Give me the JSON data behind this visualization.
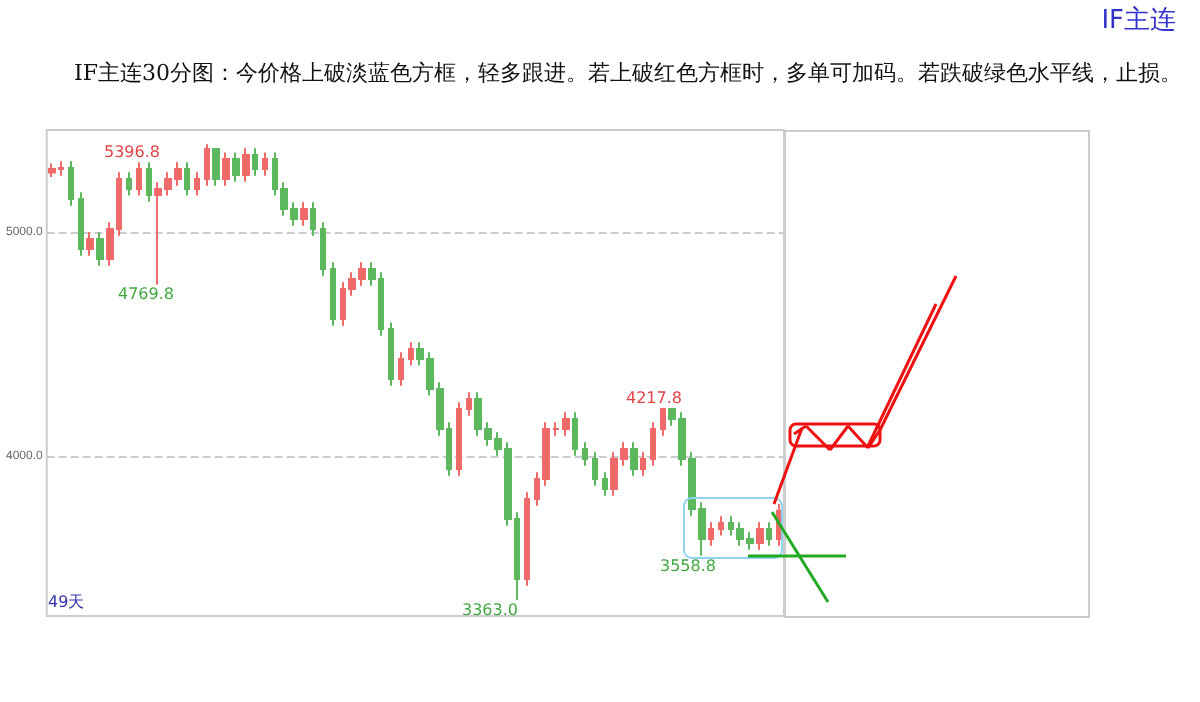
{
  "chart_data": {
    "type": "candlestick",
    "title": "IF主连30分图：今价格上破淡蓝色方框，轻多跟进。若上破红色方框时，多单可加码。若跌破绿色水平线，止损。",
    "categories": [
      null,
      null,
      null,
      null,
      null,
      null,
      null,
      null,
      null,
      null,
      null,
      null,
      null,
      null,
      null,
      null,
      null,
      null,
      null,
      null,
      null,
      null,
      null,
      null,
      null,
      null,
      null,
      null,
      null,
      null,
      null,
      null,
      null,
      null,
      null,
      null,
      null,
      null,
      null,
      null,
      null,
      null,
      null,
      null,
      null,
      null,
      null,
      null,
      null,
      null,
      null,
      null,
      null,
      null,
      null,
      null,
      null,
      null,
      null,
      null,
      null,
      null,
      null,
      null,
      null,
      null,
      null,
      null,
      null,
      null,
      null,
      null,
      null,
      null,
      null,
      null
    ],
    "ohlc": [
      [
        5270,
        5310,
        5250,
        5286
      ],
      [
        5286,
        5320,
        5256,
        5290
      ],
      [
        5290,
        5320,
        5122,
        5152
      ],
      [
        5152,
        5182,
        4899,
        4929
      ],
      [
        4929,
        5003,
        4899,
        4973
      ],
      [
        4973,
        5003,
        4854,
        4884
      ],
      [
        4884,
        5048,
        4854,
        5018
      ],
      [
        5018,
        5271,
        4988,
        5241
      ],
      [
        5241,
        5271,
        5167,
        5197
      ],
      [
        5197,
        5316,
        5167,
        5286
      ],
      [
        5286,
        5316,
        5140,
        5170
      ],
      [
        5170,
        5227,
        4769.8,
        5197
      ],
      [
        5197,
        5271,
        5167,
        5241
      ],
      [
        5241,
        5316,
        5211,
        5286
      ],
      [
        5286,
        5316,
        5167,
        5197
      ],
      [
        5197,
        5271,
        5167,
        5241
      ],
      [
        5241,
        5396.8,
        5211,
        5375
      ],
      [
        5375,
        5380,
        5211,
        5241
      ],
      [
        5241,
        5360,
        5211,
        5330
      ],
      [
        5330,
        5360,
        5229,
        5259
      ],
      [
        5259,
        5378,
        5229,
        5348
      ],
      [
        5348,
        5378,
        5256,
        5286
      ],
      [
        5286,
        5360,
        5256,
        5330
      ],
      [
        5330,
        5360,
        5167,
        5197
      ],
      [
        5197,
        5227,
        5077,
        5107
      ],
      [
        5107,
        5137,
        5033,
        5063
      ],
      [
        5063,
        5137,
        5033,
        5107
      ],
      [
        5107,
        5137,
        4988,
        5018
      ],
      [
        5018,
        5048,
        4809,
        4839
      ],
      [
        4839,
        4869,
        4586,
        4616
      ],
      [
        4616,
        4780,
        4586,
        4750
      ],
      [
        4750,
        4825,
        4720,
        4795
      ],
      [
        4795,
        4869,
        4765,
        4839
      ],
      [
        4839,
        4869,
        4765,
        4795
      ],
      [
        4795,
        4825,
        4541,
        4571
      ],
      [
        4571,
        4601,
        4318,
        4348
      ],
      [
        4348,
        4468,
        4318,
        4438
      ],
      [
        4438,
        4512,
        4408,
        4482
      ],
      [
        4482,
        4512,
        4408,
        4438
      ],
      [
        4438,
        4468,
        4274,
        4304
      ],
      [
        4304,
        4334,
        4095,
        4125
      ],
      [
        4125,
        4155,
        3916,
        3946
      ],
      [
        3946,
        4244,
        3916,
        4214
      ],
      [
        4214,
        4289,
        4184,
        4259
      ],
      [
        4259,
        4289,
        4095,
        4125
      ],
      [
        4125,
        4155,
        4050,
        4080
      ],
      [
        4080,
        4110,
        4006,
        4036
      ],
      [
        4036,
        4066,
        3693,
        3723
      ],
      [
        3723,
        3753,
        3363.0,
        3455
      ],
      [
        3455,
        3842,
        3425,
        3812
      ],
      [
        3812,
        3932,
        3782,
        3902
      ],
      [
        3902,
        4155,
        3872,
        4125
      ],
      [
        4125,
        4155,
        4095,
        4125
      ],
      [
        4125,
        4200,
        4095,
        4170
      ],
      [
        4170,
        4200,
        4006,
        4036
      ],
      [
        4036,
        4066,
        3961,
        3991
      ],
      [
        3991,
        4021,
        3872,
        3902
      ],
      [
        3902,
        3932,
        3827,
        3857
      ],
      [
        3857,
        4021,
        3827,
        3991
      ],
      [
        3991,
        4066,
        3961,
        4036
      ],
      [
        4036,
        4066,
        3916,
        3946
      ],
      [
        3946,
        4021,
        3916,
        3991
      ],
      [
        3991,
        4155,
        3961,
        4125
      ],
      [
        4125,
        4217.8,
        4095,
        4214
      ],
      [
        4214,
        4216,
        4140,
        4170
      ],
      [
        4170,
        4200,
        3961,
        3991
      ],
      [
        3991,
        4021,
        3738,
        3768
      ],
      [
        3768,
        3798,
        3558.8,
        3634
      ],
      [
        3634,
        3709,
        3604,
        3679
      ],
      [
        3679,
        3735,
        3649,
        3705
      ],
      [
        3705,
        3735,
        3649,
        3679
      ],
      [
        3679,
        3709,
        3604,
        3634
      ],
      [
        3634,
        3664,
        3586,
        3616
      ],
      [
        3616,
        3709,
        3586,
        3679
      ],
      [
        3679,
        3709,
        3604,
        3634
      ],
      [
        3634,
        3790,
        3604,
        3760
      ]
    ],
    "colors": [
      "#f06a6a",
      "#f06a6a",
      "#5cb85c",
      "#5cb85c",
      "#f06a6a",
      "#5cb85c",
      "#f06a6a",
      "#f06a6a",
      "#5cb85c",
      "#f06a6a",
      "#5cb85c",
      "#f06a6a",
      "#f06a6a",
      "#f06a6a",
      "#5cb85c",
      "#f06a6a",
      "#f06a6a",
      "#5cb85c",
      "#f06a6a",
      "#5cb85c",
      "#f06a6a",
      "#5cb85c",
      "#f06a6a",
      "#5cb85c",
      "#5cb85c",
      "#5cb85c",
      "#f06a6a",
      "#5cb85c",
      "#5cb85c",
      "#5cb85c",
      "#f06a6a",
      "#f06a6a",
      "#f06a6a",
      "#5cb85c",
      "#5cb85c",
      "#5cb85c",
      "#f06a6a",
      "#f06a6a",
      "#5cb85c",
      "#5cb85c",
      "#5cb85c",
      "#5cb85c",
      "#f06a6a",
      "#f06a6a",
      "#5cb85c",
      "#5cb85c",
      "#5cb85c",
      "#5cb85c",
      "#5cb85c",
      "#f06a6a",
      "#f06a6a",
      "#f06a6a",
      "#f06a6a",
      "#f06a6a",
      "#5cb85c",
      "#5cb85c",
      "#5cb85c",
      "#5cb85c",
      "#f06a6a",
      "#f06a6a",
      "#5cb85c",
      "#f06a6a",
      "#f06a6a",
      "#f06a6a",
      "#5cb85c",
      "#5cb85c",
      "#5cb85c",
      "#5cb85c",
      "#f06a6a",
      "#f06a6a",
      "#5cb85c",
      "#5cb85c",
      "#5cb85c",
      "#f06a6a",
      "#5cb85c",
      "#f06a6a"
    ],
    "ylim": [
      3290,
      5460
    ],
    "yticks": [
      {
        "value": 4000,
        "label": "4000.0"
      },
      {
        "value": 5000,
        "label": "5000.0"
      }
    ],
    "grid": "y",
    "annotations": [
      "IF主连",
      "49天",
      "5396.8",
      "4769.8",
      "3363.0",
      "4217.8",
      "3558.8"
    ]
  }
}
